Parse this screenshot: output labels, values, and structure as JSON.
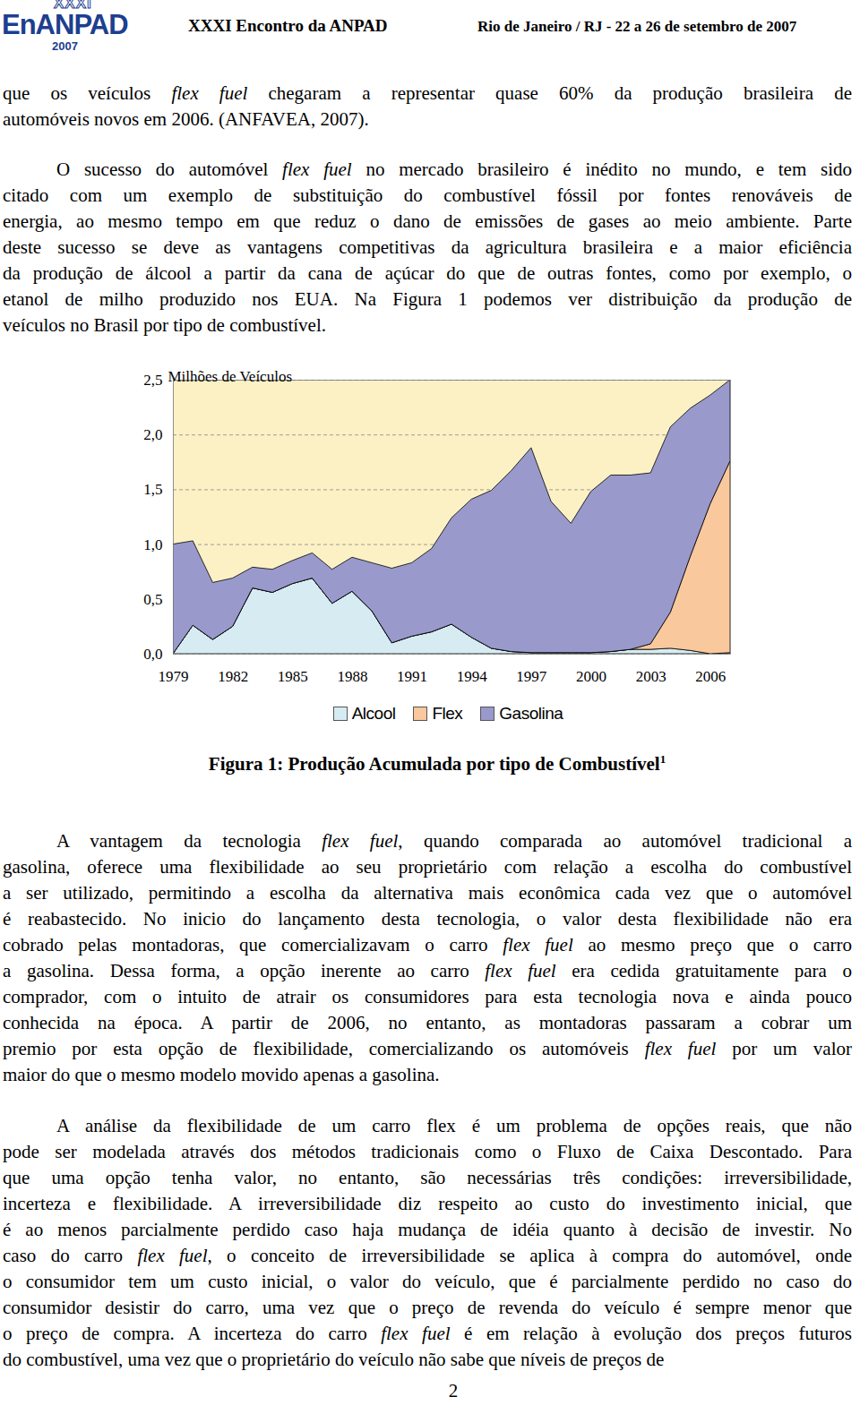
{
  "header": {
    "logo": {
      "edition": "XXXI",
      "name": "EnANPAD",
      "year": "2007"
    },
    "event": "XXXI Encontro da ANPAD",
    "place_date": "Rio de Janeiro / RJ - 22 a 26 de setembro de 2007"
  },
  "emphasis": [
    "flex fuel"
  ],
  "paragraphs_before": [
    {
      "indent": false,
      "lines": [
        "que os veículos flex fuel chegaram a representar quase 60% da produção brasileira de",
        "automóveis novos em 2006. (ANFAVEA, 2007)."
      ]
    },
    {
      "indent": true,
      "lines": [
        "O sucesso do automóvel flex fuel no mercado brasileiro é inédito no mundo, e tem sido",
        "citado com um exemplo de substituição do combustível fóssil por fontes renováveis de",
        "energia, ao mesmo tempo em que reduz o dano de emissões de gases ao meio ambiente. Parte",
        "deste sucesso se deve as vantagens competitivas da agricultura brasileira e a maior eficiência",
        "da produção de álcool a partir da cana de açúcar do que de outras fontes, como por exemplo, o",
        "etanol de milho produzido nos EUA. Na Figura 1 podemos ver distribuição da produção de",
        "veículos no Brasil por tipo de combustível."
      ]
    }
  ],
  "chart_data": {
    "type": "area",
    "stacked": true,
    "ylabel": "Milhões de Veículos",
    "x": [
      1979,
      1980,
      1981,
      1982,
      1983,
      1984,
      1985,
      1986,
      1987,
      1988,
      1989,
      1990,
      1991,
      1992,
      1993,
      1994,
      1995,
      1996,
      1997,
      1998,
      1999,
      2000,
      2001,
      2002,
      2003,
      2004,
      2005,
      2006,
      2007
    ],
    "series": [
      {
        "name": "Alcool",
        "color": "#d6ecf2",
        "values": [
          0.0,
          0.26,
          0.13,
          0.25,
          0.6,
          0.56,
          0.64,
          0.69,
          0.46,
          0.57,
          0.39,
          0.1,
          0.16,
          0.2,
          0.27,
          0.15,
          0.05,
          0.02,
          0.01,
          0.01,
          0.01,
          0.01,
          0.02,
          0.04,
          0.04,
          0.05,
          0.03,
          0.0,
          0.01
        ]
      },
      {
        "name": "Flex",
        "color": "#f9c89c",
        "values": [
          0,
          0,
          0,
          0,
          0,
          0,
          0,
          0,
          0,
          0,
          0,
          0,
          0,
          0,
          0,
          0,
          0,
          0,
          0,
          0,
          0,
          0,
          0,
          0,
          0.05,
          0.33,
          0.86,
          1.37,
          1.75
        ]
      },
      {
        "name": "Gasolina",
        "color": "#9999cc",
        "values": [
          1.0,
          0.77,
          0.52,
          0.44,
          0.19,
          0.21,
          0.21,
          0.23,
          0.31,
          0.31,
          0.44,
          0.68,
          0.67,
          0.76,
          0.97,
          1.26,
          1.44,
          1.65,
          1.87,
          1.38,
          1.18,
          1.47,
          1.61,
          1.59,
          1.56,
          1.69,
          1.35,
          0.99,
          0.74
        ]
      }
    ],
    "xlim": [
      1979,
      2007
    ],
    "xticks": [
      1979,
      1982,
      1985,
      1988,
      1991,
      1994,
      1997,
      2000,
      2003,
      2006
    ],
    "ylim": [
      0,
      2.5
    ],
    "yticks": [
      {
        "value": 0,
        "label": "0,0"
      },
      {
        "value": 0.5,
        "label": "0,5"
      },
      {
        "value": 1,
        "label": "1,0"
      },
      {
        "value": 1.5,
        "label": "1,5"
      },
      {
        "value": 2,
        "label": "2,0"
      },
      {
        "value": 2.5,
        "label": "2,5"
      }
    ],
    "grid": true,
    "legend": "bottom"
  },
  "figure": {
    "caption": "Figura 1: Produção Acumulada por tipo de Combustível",
    "footnote_mark": "1"
  },
  "paragraphs_after": [
    {
      "indent": true,
      "lines": [
        "A vantagem da tecnologia flex fuel, quando comparada ao automóvel tradicional a",
        "gasolina, oferece uma flexibilidade ao seu proprietário com relação a escolha do combustível",
        "a ser utilizado, permitindo a escolha da alternativa mais econômica cada vez que o automóvel",
        "é reabastecido. No inicio do lançamento desta tecnologia, o valor desta flexibilidade não era",
        "cobrado pelas montadoras, que comercializavam o carro flex fuel ao mesmo preço que o carro",
        "a gasolina. Dessa forma, a opção inerente ao carro flex fuel era cedida gratuitamente para o",
        "comprador, com o intuito de atrair os consumidores para esta tecnologia nova e ainda pouco",
        "conhecida na época. A partir de 2006, no entanto, as montadoras passaram a cobrar um",
        "premio por esta opção de flexibilidade, comercializando os automóveis flex fuel por um valor",
        "maior do que o mesmo modelo movido apenas a gasolina."
      ]
    },
    {
      "indent": true,
      "lines": [
        "A análise da flexibilidade de um carro flex é um problema de opções reais, que não",
        "pode ser modelada através dos métodos tradicionais como o Fluxo de Caixa Descontado. Para",
        "que uma opção tenha valor, no entanto, são necessárias três condições: irreversibilidade,",
        "incerteza e flexibilidade. A irreversibilidade diz respeito ao custo do investimento inicial, que",
        "é ao menos parcialmente perdido caso haja mudança de idéia quanto à decisão de investir. No",
        "caso do carro flex fuel, o conceito de irreversibilidade se aplica à compra do automóvel, onde",
        "o consumidor tem um custo inicial, o valor do veículo, que é parcialmente perdido no caso do",
        "consumidor desistir do carro, uma vez que o preço de revenda do veículo é sempre menor que",
        "o preço de compra. A incerteza do carro flex fuel é em relação à evolução dos preços futuros",
        "do combustível, uma vez que o proprietário do veículo não sabe que níveis de preços de"
      ]
    }
  ],
  "page_number": "2"
}
